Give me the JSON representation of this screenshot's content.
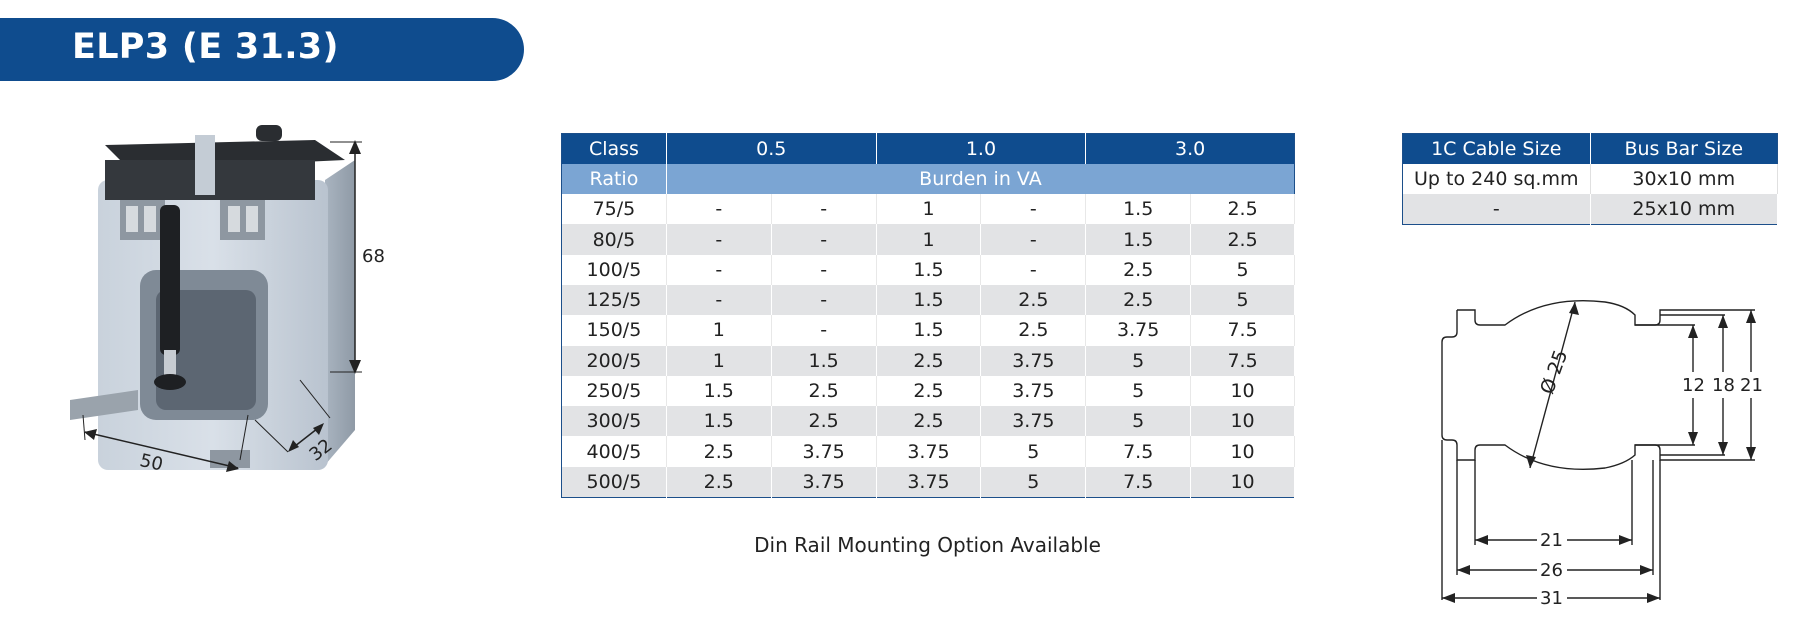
{
  "title": "ELP3 (E 31.3)",
  "product": {
    "dim_height": "68",
    "dim_width": "50",
    "dim_depth": "32"
  },
  "table": {
    "header_class": "Class",
    "header_ratio": "Ratio",
    "classes": [
      "0.5",
      "1.0",
      "3.0"
    ],
    "burden_label": "Burden in VA",
    "rows": [
      {
        "ratio": "75/5",
        "cells": [
          "-",
          "-",
          "1",
          "-",
          "1.5",
          "2.5"
        ]
      },
      {
        "ratio": "80/5",
        "cells": [
          "-",
          "-",
          "1",
          "-",
          "1.5",
          "2.5"
        ]
      },
      {
        "ratio": "100/5",
        "cells": [
          "-",
          "-",
          "1.5",
          "-",
          "2.5",
          "5"
        ]
      },
      {
        "ratio": "125/5",
        "cells": [
          "-",
          "-",
          "1.5",
          "2.5",
          "2.5",
          "5"
        ]
      },
      {
        "ratio": "150/5",
        "cells": [
          "1",
          "-",
          "1.5",
          "2.5",
          "3.75",
          "7.5"
        ]
      },
      {
        "ratio": "200/5",
        "cells": [
          "1",
          "1.5",
          "2.5",
          "3.75",
          "5",
          "7.5"
        ]
      },
      {
        "ratio": "250/5",
        "cells": [
          "1.5",
          "2.5",
          "2.5",
          "3.75",
          "5",
          "10"
        ]
      },
      {
        "ratio": "300/5",
        "cells": [
          "1.5",
          "2.5",
          "2.5",
          "3.75",
          "5",
          "10"
        ]
      },
      {
        "ratio": "400/5",
        "cells": [
          "2.5",
          "3.75",
          "3.75",
          "5",
          "7.5",
          "10"
        ]
      },
      {
        "ratio": "500/5",
        "cells": [
          "2.5",
          "3.75",
          "3.75",
          "5",
          "7.5",
          "10"
        ]
      }
    ]
  },
  "note": "Din Rail Mounting Option Available",
  "side_table": {
    "headers": [
      "1C Cable Size",
      "Bus Bar Size"
    ],
    "rows": [
      [
        "Up to 240 sq.mm",
        "30x10 mm"
      ],
      [
        "-",
        "25x10 mm"
      ]
    ]
  },
  "drawing": {
    "diameter": "Ø 25",
    "dims_right": [
      "12",
      "18",
      "21"
    ],
    "dims_bottom": [
      "21",
      "26",
      "31"
    ]
  },
  "colors": {
    "brand_blue": "#0f4c8e",
    "light_blue": "#7ba5d3",
    "row_gray": "#e2e3e5"
  }
}
